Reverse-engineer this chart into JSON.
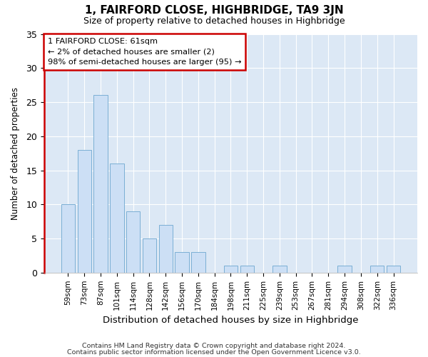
{
  "title1": "1, FAIRFORD CLOSE, HIGHBRIDGE, TA9 3JN",
  "title2": "Size of property relative to detached houses in Highbridge",
  "xlabel": "Distribution of detached houses by size in Highbridge",
  "ylabel": "Number of detached properties",
  "categories": [
    "59sqm",
    "73sqm",
    "87sqm",
    "101sqm",
    "114sqm",
    "128sqm",
    "142sqm",
    "156sqm",
    "170sqm",
    "184sqm",
    "198sqm",
    "211sqm",
    "225sqm",
    "239sqm",
    "253sqm",
    "267sqm",
    "281sqm",
    "294sqm",
    "308sqm",
    "322sqm",
    "336sqm"
  ],
  "values": [
    10,
    18,
    26,
    16,
    9,
    5,
    7,
    3,
    3,
    0,
    1,
    1,
    0,
    1,
    0,
    0,
    0,
    1,
    0,
    1,
    1
  ],
  "bar_color": "#ccdff5",
  "bar_edge_color": "#7bafd4",
  "annotation_text": "1 FAIRFORD CLOSE: 61sqm\n← 2% of detached houses are smaller (2)\n98% of semi-detached houses are larger (95) →",
  "annotation_box_facecolor": "#ffffff",
  "annotation_box_edgecolor": "#cc0000",
  "ylim": [
    0,
    35
  ],
  "yticks": [
    0,
    5,
    10,
    15,
    20,
    25,
    30,
    35
  ],
  "footer1": "Contains HM Land Registry data © Crown copyright and database right 2024.",
  "footer2": "Contains public sector information licensed under the Open Government Licence v3.0.",
  "fig_bg_color": "#ffffff",
  "plot_bg_color": "#dce8f5",
  "grid_color": "#ffffff",
  "left_spine_color": "#cc0000",
  "title1_fontsize": 11,
  "title2_fontsize": 9
}
